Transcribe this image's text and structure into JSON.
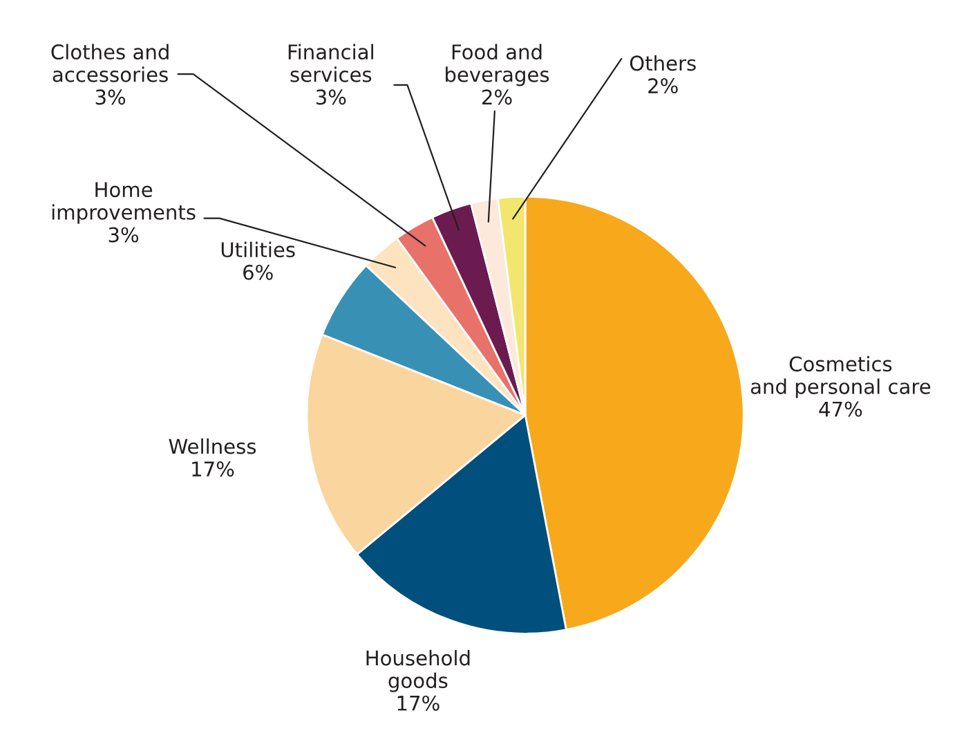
{
  "chart_data": {
    "type": "pie",
    "categories": [
      "Cosmetics\nand personal care",
      "Household\ngoods",
      "Wellness",
      "Utilities",
      "Home\nimprovements",
      "Clothes and\naccessories",
      "Financial\nservices",
      "Food and\nbeverages",
      "Others"
    ],
    "values": [
      47,
      17,
      17,
      6,
      3,
      3,
      3,
      2,
      2
    ],
    "colors": [
      "#f7a91b",
      "#004f7c",
      "#fbd59e",
      "#3891b4",
      "#fde3bf",
      "#e8716a",
      "#6b1b4f",
      "#fde9d9",
      "#f2e66f"
    ],
    "value_labels": [
      "47%",
      "17%",
      "17%",
      "6%",
      "3%",
      "3%",
      "3%",
      "2%",
      "2%"
    ]
  }
}
